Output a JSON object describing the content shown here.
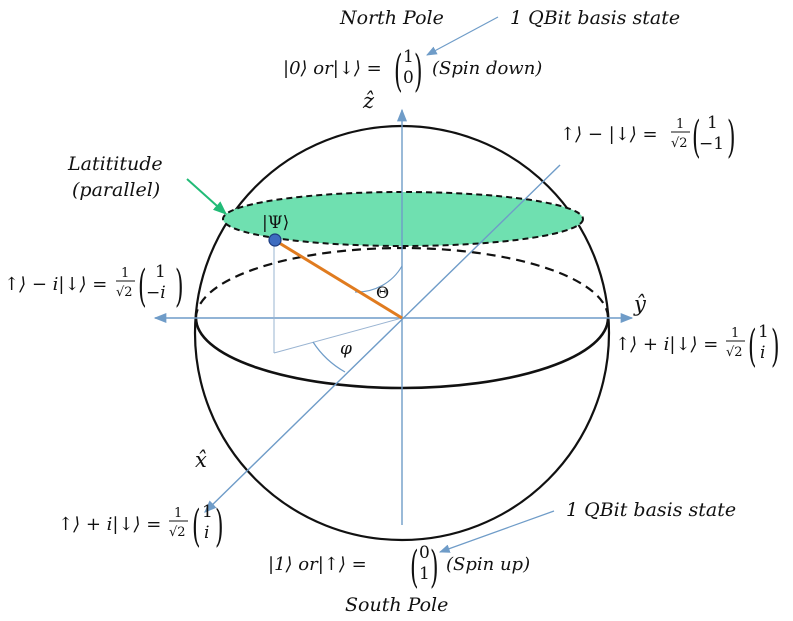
{
  "labels": {
    "north_pole": "North Pole",
    "south_pole": "South Pole",
    "basis_top": "1 QBit basis state",
    "basis_bottom": "1 QBit basis state",
    "latitude_line1": "Latititude",
    "latitude_line2": "(parallel)",
    "z_axis": "ẑ",
    "y_axis": "ŷ",
    "x_axis": "x̂",
    "psi": "|Ψ⟩",
    "theta": "Θ",
    "phi": "φ"
  },
  "states": {
    "top": {
      "lhs": "|0⟩ or|↓⟩ =",
      "v1": "1",
      "v2": "0",
      "note": "(Spin down)"
    },
    "bottom": {
      "lhs": "|1⟩ or|↑⟩ =",
      "v1": "0",
      "v2": "1",
      "note": "(Spin up)"
    },
    "upper_right": {
      "lhs": "↑⟩ − |↓⟩ =",
      "frac_num": "1",
      "frac_den": "√2",
      "v1": "1",
      "v2": "−1"
    },
    "left": {
      "lhs": "↑⟩ − i|↓⟩ =",
      "frac_num": "1",
      "frac_den": "√2",
      "v1": "1",
      "v2": "−i"
    },
    "right": {
      "lhs": "↑⟩ + i|↓⟩ =",
      "frac_num": "1",
      "frac_den": "√2",
      "v1": "1",
      "v2": "i"
    },
    "lower_left": {
      "lhs": "↑⟩ + i|↓⟩ =",
      "frac_num": "1",
      "frac_den": "√2",
      "v1": "1",
      "v2": "i"
    }
  },
  "colors": {
    "axis": "#6f9cc8",
    "sphere": "#111111",
    "latitude_fill": "#6fe0b0",
    "state_vector": "#e07b1f",
    "state_point": "#3d6cc0",
    "callout_arrow": "#22bb77"
  }
}
